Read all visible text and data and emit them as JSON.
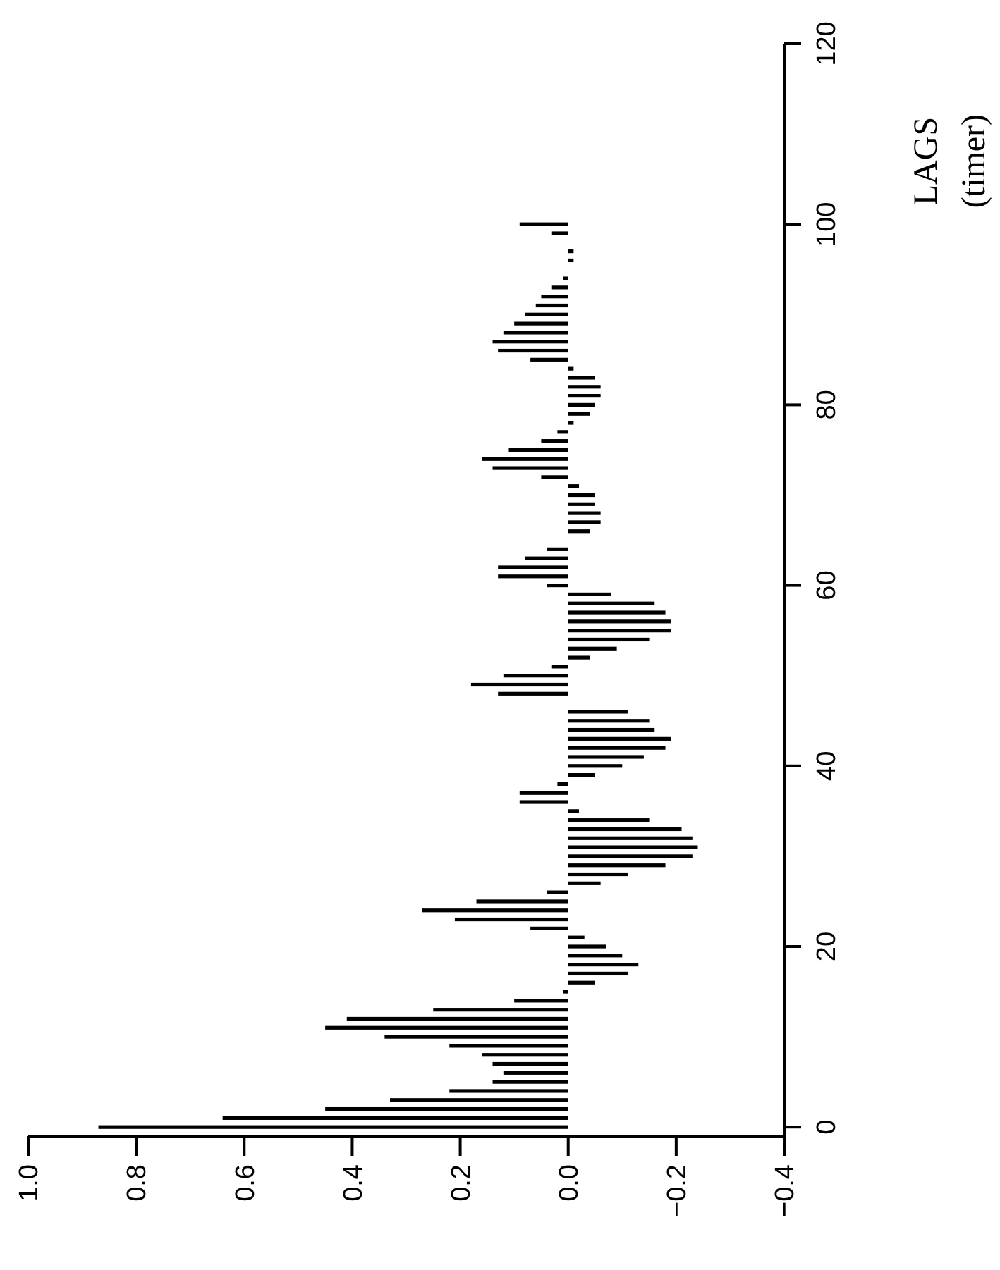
{
  "chart_data": {
    "type": "bar",
    "orientation": "horizontal",
    "ylabel": "LAGS (timer)",
    "x": [
      0,
      1,
      2,
      3,
      4,
      5,
      6,
      7,
      8,
      9,
      10,
      11,
      12,
      13,
      14,
      15,
      16,
      17,
      18,
      19,
      20,
      21,
      22,
      23,
      24,
      25,
      26,
      27,
      28,
      29,
      30,
      31,
      32,
      33,
      34,
      35,
      36,
      37,
      38,
      39,
      40,
      41,
      42,
      43,
      44,
      45,
      46,
      47,
      48,
      49,
      50,
      51,
      52,
      53,
      54,
      55,
      56,
      57,
      58,
      59,
      60,
      61,
      62,
      63,
      64,
      65,
      66,
      67,
      68,
      69,
      70,
      71,
      72,
      73,
      74,
      75,
      76,
      77,
      78,
      79,
      80,
      81,
      82,
      83,
      84,
      85,
      86,
      87,
      88,
      89,
      90,
      91,
      92,
      93,
      94,
      95,
      96,
      97,
      98,
      99,
      100
    ],
    "values": [
      0.87,
      0.64,
      0.45,
      0.33,
      0.22,
      0.14,
      0.12,
      0.14,
      0.16,
      0.22,
      0.34,
      0.45,
      0.41,
      0.25,
      0.1,
      0.01,
      -0.05,
      -0.11,
      -0.13,
      -0.1,
      -0.07,
      -0.03,
      0.07,
      0.21,
      0.27,
      0.17,
      0.04,
      -0.06,
      -0.11,
      -0.18,
      -0.23,
      -0.24,
      -0.23,
      -0.21,
      -0.15,
      -0.02,
      0.09,
      0.09,
      0.02,
      -0.05,
      -0.1,
      -0.14,
      -0.18,
      -0.19,
      -0.16,
      -0.15,
      -0.11,
      0.0,
      0.13,
      0.18,
      0.12,
      0.03,
      -0.04,
      -0.09,
      -0.15,
      -0.19,
      -0.19,
      -0.18,
      -0.16,
      -0.08,
      0.04,
      0.13,
      0.13,
      0.08,
      0.04,
      0.0,
      -0.04,
      -0.06,
      -0.06,
      -0.05,
      -0.05,
      -0.02,
      0.05,
      0.14,
      0.16,
      0.11,
      0.05,
      0.02,
      -0.01,
      -0.04,
      -0.05,
      -0.06,
      -0.06,
      -0.05,
      -0.01,
      0.07,
      0.13,
      0.14,
      0.12,
      0.1,
      0.08,
      0.06,
      0.05,
      0.03,
      0.01,
      0.0,
      -0.01,
      -0.01,
      0.0,
      0.03,
      0.09
    ],
    "color": "#000000",
    "ylim": [
      -1,
      120
    ],
    "yticks": [
      0,
      20,
      40,
      60,
      80,
      100,
      120
    ],
    "xlim": [
      1.0,
      -0.4
    ],
    "xticks": [
      {
        "value": -0.4,
        "label": "−0.4"
      },
      {
        "value": -0.2,
        "label": "−0.2"
      },
      {
        "value": 0,
        "label": "0.0"
      },
      {
        "value": 0.2,
        "label": "0.2"
      },
      {
        "value": 0.4,
        "label": "0.4"
      },
      {
        "value": 0.6,
        "label": "0.6"
      },
      {
        "value": 0.8,
        "label": "0.8"
      },
      {
        "value": 1,
        "label": "1.0"
      }
    ]
  }
}
